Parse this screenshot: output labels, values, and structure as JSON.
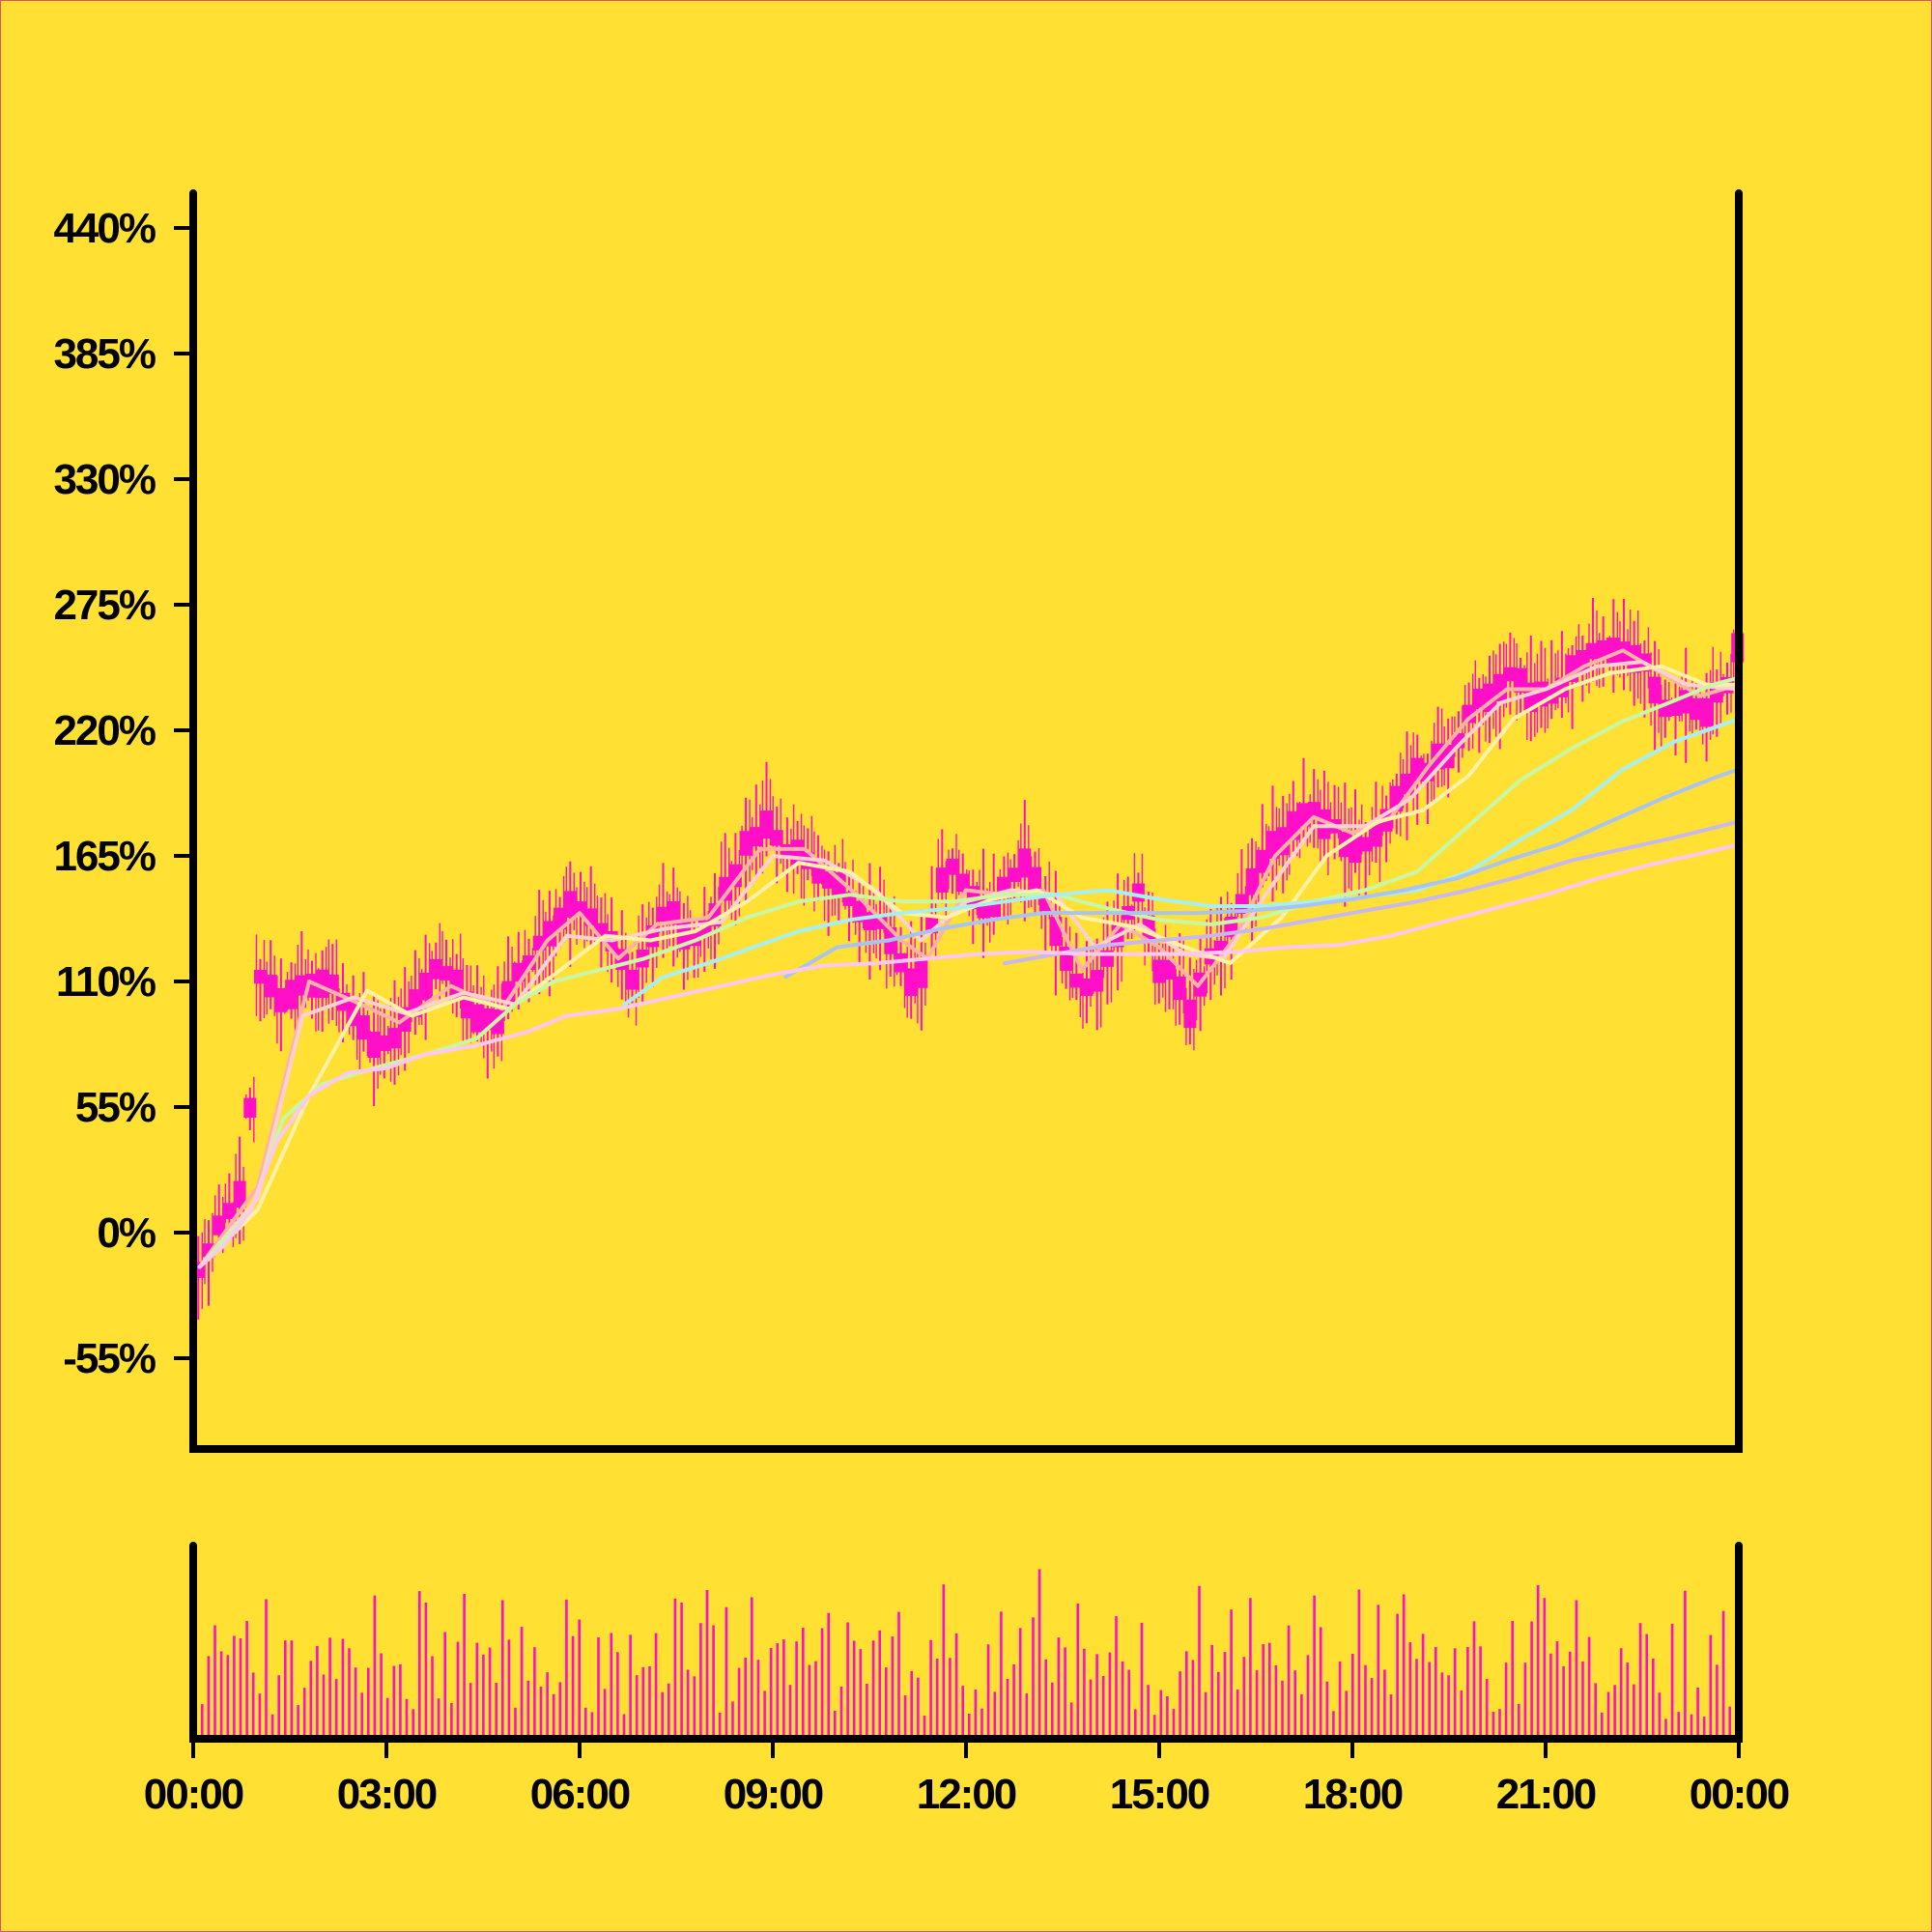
{
  "colors": {
    "background": "#FFE033",
    "border": "#E0506A",
    "axis": "#000000",
    "candle": "#FF10C8",
    "volume": "#FF10C8"
  },
  "chart_data": {
    "type": "candlestick",
    "y_unit": "%",
    "ylim": [
      -85,
      445
    ],
    "y_ticks": [
      -55,
      0,
      55,
      110,
      165,
      220,
      275,
      330,
      385,
      440
    ],
    "y_tick_labels": [
      "-55%",
      "0%",
      "55%",
      "110%",
      "165%",
      "220%",
      "275%",
      "330%",
      "385%",
      "440%"
    ],
    "x_ticks": [
      0,
      3,
      6,
      9,
      12,
      15,
      18,
      21,
      24
    ],
    "x_tick_labels": [
      "00:00",
      "03:00",
      "06:00",
      "09:00",
      "12:00",
      "15:00",
      "18:00",
      "21:00",
      "00:00"
    ],
    "xlim_hours": [
      0,
      24
    ],
    "grid": false,
    "legend": "none",
    "price_path": [
      [
        0.1,
        -15
      ],
      [
        0.3,
        -5
      ],
      [
        0.5,
        8
      ],
      [
        0.7,
        15
      ],
      [
        0.85,
        25
      ],
      [
        0.95,
        120
      ],
      [
        1.1,
        110
      ],
      [
        1.4,
        100
      ],
      [
        1.7,
        108
      ],
      [
        2.0,
        112
      ],
      [
        2.3,
        105
      ],
      [
        2.6,
        90
      ],
      [
        2.9,
        80
      ],
      [
        3.2,
        90
      ],
      [
        3.5,
        105
      ],
      [
        3.8,
        115
      ],
      [
        4.1,
        110
      ],
      [
        4.4,
        95
      ],
      [
        4.7,
        90
      ],
      [
        5.0,
        110
      ],
      [
        5.3,
        125
      ],
      [
        5.6,
        135
      ],
      [
        5.9,
        145
      ],
      [
        6.2,
        140
      ],
      [
        6.5,
        125
      ],
      [
        6.8,
        110
      ],
      [
        7.1,
        130
      ],
      [
        7.4,
        140
      ],
      [
        7.7,
        125
      ],
      [
        8.0,
        135
      ],
      [
        8.3,
        150
      ],
      [
        8.6,
        170
      ],
      [
        8.9,
        180
      ],
      [
        9.2,
        170
      ],
      [
        9.5,
        165
      ],
      [
        9.8,
        155
      ],
      [
        10.1,
        150
      ],
      [
        10.4,
        140
      ],
      [
        10.7,
        135
      ],
      [
        11.0,
        115
      ],
      [
        11.2,
        105
      ],
      [
        11.4,
        125
      ],
      [
        11.7,
        165
      ],
      [
        12.0,
        150
      ],
      [
        12.3,
        140
      ],
      [
        12.6,
        150
      ],
      [
        12.9,
        160
      ],
      [
        13.2,
        150
      ],
      [
        13.5,
        125
      ],
      [
        13.8,
        105
      ],
      [
        14.1,
        110
      ],
      [
        14.4,
        135
      ],
      [
        14.7,
        150
      ],
      [
        15.0,
        115
      ],
      [
        15.3,
        110
      ],
      [
        15.5,
        95
      ],
      [
        15.8,
        120
      ],
      [
        16.1,
        130
      ],
      [
        16.4,
        150
      ],
      [
        16.7,
        165
      ],
      [
        17.0,
        175
      ],
      [
        17.3,
        188
      ],
      [
        17.6,
        180
      ],
      [
        17.9,
        170
      ],
      [
        18.2,
        168
      ],
      [
        18.4,
        175
      ],
      [
        18.7,
        190
      ],
      [
        19.0,
        200
      ],
      [
        19.3,
        205
      ],
      [
        19.6,
        215
      ],
      [
        19.9,
        230
      ],
      [
        20.2,
        238
      ],
      [
        20.5,
        245
      ],
      [
        20.8,
        235
      ],
      [
        21.1,
        238
      ],
      [
        21.4,
        245
      ],
      [
        21.7,
        255
      ],
      [
        22.0,
        252
      ],
      [
        22.3,
        255
      ],
      [
        22.6,
        245
      ],
      [
        22.9,
        230
      ],
      [
        23.2,
        235
      ],
      [
        23.5,
        228
      ],
      [
        23.8,
        240
      ],
      [
        24.0,
        255
      ]
    ],
    "moving_averages": [
      {
        "color": "#FFB3A7",
        "points": [
          [
            0.1,
            -15
          ],
          [
            1.0,
            20
          ],
          [
            1.8,
            110
          ],
          [
            2.6,
            100
          ],
          [
            3.2,
            92
          ],
          [
            4.0,
            108
          ],
          [
            4.8,
            98
          ],
          [
            5.5,
            128
          ],
          [
            6.0,
            140
          ],
          [
            6.6,
            120
          ],
          [
            7.2,
            135
          ],
          [
            8.0,
            138
          ],
          [
            8.8,
            168
          ],
          [
            9.5,
            168
          ],
          [
            10.3,
            148
          ],
          [
            11.0,
            128
          ],
          [
            11.4,
            120
          ],
          [
            12.0,
            150
          ],
          [
            12.6,
            148
          ],
          [
            13.2,
            150
          ],
          [
            13.8,
            115
          ],
          [
            14.4,
            135
          ],
          [
            15.0,
            125
          ],
          [
            15.6,
            108
          ],
          [
            16.2,
            130
          ],
          [
            16.8,
            165
          ],
          [
            17.4,
            182
          ],
          [
            18.0,
            175
          ],
          [
            18.6,
            182
          ],
          [
            19.2,
            205
          ],
          [
            19.8,
            225
          ],
          [
            20.4,
            238
          ],
          [
            21.0,
            238
          ],
          [
            21.6,
            248
          ],
          [
            22.2,
            255
          ],
          [
            22.8,
            245
          ],
          [
            23.4,
            235
          ],
          [
            24.0,
            240
          ]
        ]
      },
      {
        "color": "#FFD1D1",
        "points": [
          [
            0.1,
            -15
          ],
          [
            1.0,
            15
          ],
          [
            1.7,
            95
          ],
          [
            2.5,
            103
          ],
          [
            3.3,
            96
          ],
          [
            4.2,
            105
          ],
          [
            5.0,
            100
          ],
          [
            5.8,
            130
          ],
          [
            6.5,
            128
          ],
          [
            7.3,
            133
          ],
          [
            8.2,
            136
          ],
          [
            9.0,
            165
          ],
          [
            9.8,
            163
          ],
          [
            10.6,
            150
          ],
          [
            11.3,
            128
          ],
          [
            12.0,
            145
          ],
          [
            12.7,
            150
          ],
          [
            13.4,
            148
          ],
          [
            14.0,
            125
          ],
          [
            14.7,
            135
          ],
          [
            15.4,
            122
          ],
          [
            16.0,
            120
          ],
          [
            16.7,
            150
          ],
          [
            17.4,
            178
          ],
          [
            18.2,
            178
          ],
          [
            18.9,
            190
          ],
          [
            19.6,
            212
          ],
          [
            20.3,
            232
          ],
          [
            21.0,
            238
          ],
          [
            21.8,
            248
          ],
          [
            22.5,
            250
          ],
          [
            23.2,
            240
          ],
          [
            24.0,
            238
          ]
        ]
      },
      {
        "color": "#FFF2A8",
        "points": [
          [
            0.1,
            -15
          ],
          [
            1.0,
            10
          ],
          [
            1.8,
            60
          ],
          [
            2.7,
            106
          ],
          [
            3.4,
            95
          ],
          [
            4.2,
            103
          ],
          [
            4.9,
            98
          ],
          [
            5.7,
            115
          ],
          [
            6.4,
            130
          ],
          [
            7.1,
            128
          ],
          [
            7.8,
            132
          ],
          [
            8.6,
            145
          ],
          [
            9.4,
            162
          ],
          [
            10.2,
            158
          ],
          [
            11.0,
            140
          ],
          [
            11.7,
            138
          ],
          [
            12.4,
            146
          ],
          [
            13.1,
            150
          ],
          [
            13.8,
            138
          ],
          [
            14.6,
            134
          ],
          [
            15.4,
            125
          ],
          [
            16.1,
            118
          ],
          [
            16.9,
            138
          ],
          [
            17.6,
            165
          ],
          [
            18.4,
            180
          ],
          [
            19.1,
            185
          ],
          [
            19.8,
            200
          ],
          [
            20.5,
            225
          ],
          [
            21.3,
            238
          ],
          [
            22.0,
            245
          ],
          [
            22.8,
            248
          ],
          [
            23.5,
            240
          ],
          [
            24.0,
            240
          ]
        ]
      },
      {
        "color": "#C8F7A6",
        "points": [
          [
            0.2,
            -12
          ],
          [
            0.9,
            10
          ],
          [
            1.4,
            50
          ],
          [
            2.0,
            65
          ],
          [
            2.8,
            72
          ],
          [
            3.6,
            78
          ],
          [
            4.4,
            85
          ],
          [
            5.0,
            100
          ],
          [
            5.6,
            110
          ],
          [
            6.3,
            115
          ],
          [
            7.0,
            120
          ],
          [
            7.8,
            128
          ],
          [
            8.6,
            138
          ],
          [
            9.4,
            145
          ],
          [
            10.2,
            148
          ],
          [
            11.0,
            145
          ],
          [
            11.8,
            145
          ],
          [
            12.6,
            148
          ],
          [
            13.4,
            148
          ],
          [
            14.2,
            142
          ],
          [
            15.0,
            137
          ],
          [
            15.8,
            135
          ],
          [
            16.6,
            138
          ],
          [
            17.4,
            145
          ],
          [
            18.2,
            150
          ],
          [
            19.0,
            158
          ],
          [
            19.8,
            178
          ],
          [
            20.6,
            198
          ],
          [
            21.4,
            212
          ],
          [
            22.2,
            224
          ],
          [
            23.0,
            233
          ],
          [
            23.6,
            240
          ],
          [
            24.0,
            243
          ]
        ]
      },
      {
        "color": "#A8F0F0",
        "points": [
          [
            6.7,
            100
          ],
          [
            7.3,
            112
          ],
          [
            8.0,
            118
          ],
          [
            8.7,
            125
          ],
          [
            9.4,
            132
          ],
          [
            10.2,
            137
          ],
          [
            11.0,
            140
          ],
          [
            11.8,
            142
          ],
          [
            12.6,
            145
          ],
          [
            13.4,
            148
          ],
          [
            14.2,
            150
          ],
          [
            15.0,
            146
          ],
          [
            15.8,
            143
          ],
          [
            16.6,
            143
          ],
          [
            17.4,
            145
          ],
          [
            18.2,
            147
          ],
          [
            19.0,
            150
          ],
          [
            19.8,
            158
          ],
          [
            20.6,
            172
          ],
          [
            21.4,
            185
          ],
          [
            22.2,
            203
          ],
          [
            23.0,
            215
          ],
          [
            24.0,
            225
          ]
        ]
      },
      {
        "color": "#A9C4F0",
        "points": [
          [
            9.2,
            112
          ],
          [
            10.0,
            125
          ],
          [
            10.8,
            128
          ],
          [
            11.6,
            133
          ],
          [
            12.4,
            137
          ],
          [
            13.2,
            140
          ],
          [
            14.0,
            140
          ],
          [
            14.8,
            140
          ],
          [
            15.6,
            140
          ],
          [
            16.4,
            141
          ],
          [
            17.2,
            143
          ],
          [
            18.0,
            146
          ],
          [
            18.8,
            150
          ],
          [
            19.6,
            155
          ],
          [
            20.4,
            163
          ],
          [
            21.2,
            170
          ],
          [
            22.0,
            180
          ],
          [
            22.8,
            190
          ],
          [
            23.6,
            199
          ],
          [
            24.0,
            203
          ]
        ]
      },
      {
        "color": "#C7B8F0",
        "points": [
          [
            12.6,
            118
          ],
          [
            13.4,
            122
          ],
          [
            14.2,
            126
          ],
          [
            15.0,
            128
          ],
          [
            15.8,
            130
          ],
          [
            16.6,
            133
          ],
          [
            17.4,
            137
          ],
          [
            18.2,
            141
          ],
          [
            19.0,
            145
          ],
          [
            19.8,
            150
          ],
          [
            20.6,
            156
          ],
          [
            21.4,
            163
          ],
          [
            22.2,
            168
          ],
          [
            23.0,
            173
          ],
          [
            24.0,
            180
          ]
        ]
      },
      {
        "color": "#FFC8F0",
        "points": [
          [
            0.1,
            -15
          ],
          [
            0.5,
            -5
          ],
          [
            0.9,
            10
          ],
          [
            1.3,
            40
          ],
          [
            1.8,
            60
          ],
          [
            2.4,
            70
          ],
          [
            3.0,
            72
          ],
          [
            3.6,
            78
          ],
          [
            4.4,
            82
          ],
          [
            5.2,
            88
          ],
          [
            5.8,
            95
          ],
          [
            6.6,
            98
          ],
          [
            7.4,
            103
          ],
          [
            8.2,
            108
          ],
          [
            9.0,
            113
          ],
          [
            9.8,
            117
          ],
          [
            10.6,
            118
          ],
          [
            11.4,
            120
          ],
          [
            12.2,
            122
          ],
          [
            13.0,
            123
          ],
          [
            13.8,
            122
          ],
          [
            14.6,
            122
          ],
          [
            15.4,
            122
          ],
          [
            16.2,
            123
          ],
          [
            17.0,
            125
          ],
          [
            17.8,
            126
          ],
          [
            18.6,
            130
          ],
          [
            19.4,
            136
          ],
          [
            20.2,
            142
          ],
          [
            21.0,
            148
          ],
          [
            21.8,
            155
          ],
          [
            22.6,
            161
          ],
          [
            23.4,
            166
          ],
          [
            24.0,
            170
          ]
        ]
      }
    ]
  }
}
